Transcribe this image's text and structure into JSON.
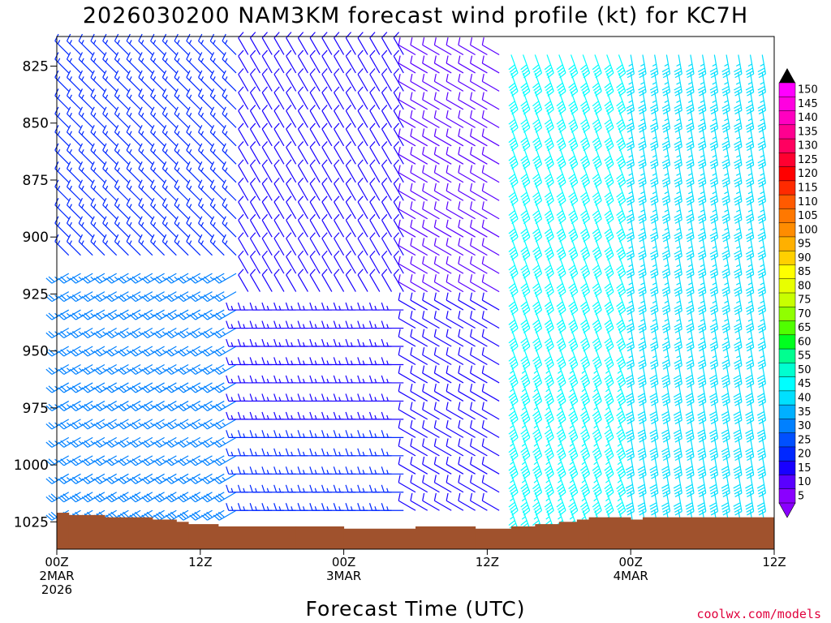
{
  "title": "2026030200 NAM3KM forecast wind profile (kt) for KC7H",
  "credit": "coolwx.com/models",
  "chart_data": {
    "type": "wind-barb-time-height",
    "title": "2026030200 NAM3KM forecast wind profile (kt) for KC7H",
    "xlabel": "Forecast Time (UTC)",
    "ylabel": "",
    "x_range_hours": [
      0,
      60
    ],
    "y_range_hpa": [
      1037,
      812
    ],
    "y_ticks": [
      {
        "value": 825,
        "label": "825"
      },
      {
        "value": 850,
        "label": "850"
      },
      {
        "value": 875,
        "label": "875"
      },
      {
        "value": 900,
        "label": "900"
      },
      {
        "value": 925,
        "label": "925"
      },
      {
        "value": 950,
        "label": "950"
      },
      {
        "value": 975,
        "label": "975"
      },
      {
        "value": 1000,
        "label": "1000"
      },
      {
        "value": 1025,
        "label": "1025"
      }
    ],
    "x_ticks": [
      {
        "hour": 0,
        "lines": [
          "00Z",
          "2MAR",
          "2026"
        ]
      },
      {
        "hour": 12,
        "lines": [
          "12Z"
        ]
      },
      {
        "hour": 24,
        "lines": [
          "00Z",
          "3MAR"
        ]
      },
      {
        "hour": 36,
        "lines": [
          "12Z"
        ]
      },
      {
        "hour": 48,
        "lines": [
          "00Z",
          "4MAR"
        ]
      },
      {
        "hour": 60,
        "lines": [
          "12Z"
        ]
      }
    ],
    "surface_pressure_hpa": [
      {
        "hour": 0,
        "p": 1021
      },
      {
        "hour": 1,
        "p": 1022
      },
      {
        "hour": 2.5,
        "p": 1022
      },
      {
        "hour": 4,
        "p": 1023
      },
      {
        "hour": 6,
        "p": 1023
      },
      {
        "hour": 8,
        "p": 1024
      },
      {
        "hour": 10,
        "p": 1025
      },
      {
        "hour": 11,
        "p": 1026
      },
      {
        "hour": 13.5,
        "p": 1027
      },
      {
        "hour": 20,
        "p": 1027
      },
      {
        "hour": 24,
        "p": 1028
      },
      {
        "hour": 30,
        "p": 1027
      },
      {
        "hour": 35,
        "p": 1028
      },
      {
        "hour": 38,
        "p": 1027
      },
      {
        "hour": 40,
        "p": 1026
      },
      {
        "hour": 42,
        "p": 1025
      },
      {
        "hour": 43.5,
        "p": 1024
      },
      {
        "hour": 44.5,
        "p": 1023
      },
      {
        "hour": 47,
        "p": 1023
      },
      {
        "hour": 48,
        "p": 1024
      },
      {
        "hour": 49,
        "p": 1023
      },
      {
        "hour": 60,
        "p": 1023
      }
    ],
    "wind_regimes": [
      {
        "hours": [
          0,
          16
        ],
        "p_low": 915,
        "dir_deg": 240,
        "speed_kt": 24
      },
      {
        "hours": [
          0,
          16
        ],
        "p_high": 915,
        "dir_deg": 315,
        "speed_kt": 15
      },
      {
        "hours": [
          16,
          30
        ],
        "p_low": 925,
        "dir_deg": 270,
        "speed_kt": 12
      },
      {
        "hours": [
          16,
          30
        ],
        "p_high": 925,
        "dir_deg": 330,
        "speed_kt": 10
      },
      {
        "hours": [
          30,
          38
        ],
        "dir_deg": 300,
        "speed_kt": 8
      },
      {
        "hours": [
          38,
          48
        ],
        "dir_deg": 160,
        "speed_kt": 40
      },
      {
        "hours": [
          48,
          60
        ],
        "dir_deg": 170,
        "speed_kt": 35
      }
    ],
    "colorbar": {
      "labels": [
        "150",
        "145",
        "140",
        "135",
        "130",
        "125",
        "120",
        "115",
        "110",
        "105",
        "100",
        "95",
        "90",
        "85",
        "80",
        "75",
        "70",
        "65",
        "60",
        "55",
        "50",
        "45",
        "40",
        "35",
        "30",
        "25",
        "20",
        "15",
        "10",
        "5"
      ],
      "colors": [
        "#ff00ff",
        "#ff00e0",
        "#ff00c0",
        "#ff0090",
        "#ff0060",
        "#ff0030",
        "#ff0000",
        "#ff2a00",
        "#ff5a00",
        "#ff7800",
        "#ff8c00",
        "#ffb000",
        "#ffd000",
        "#ffff00",
        "#e8ff00",
        "#c8ff00",
        "#90ff00",
        "#50ff00",
        "#00ff20",
        "#00ff90",
        "#00ffd0",
        "#00ffff",
        "#00e0ff",
        "#00b0ff",
        "#0080ff",
        "#0050ff",
        "#0028ff",
        "#1800ff",
        "#5a00ff",
        "#8a00ff"
      ]
    }
  }
}
